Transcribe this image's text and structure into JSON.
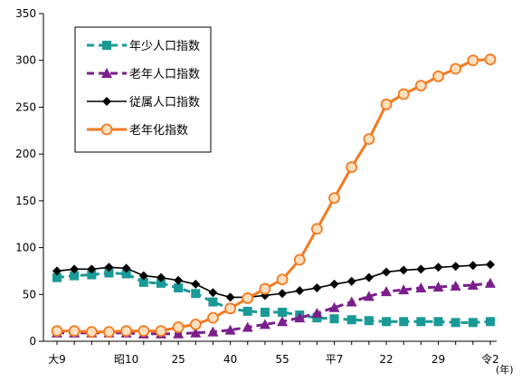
{
  "chart_data": {
    "type": "line",
    "title": "",
    "xlabel": "",
    "ylabel": "",
    "unit_label": "(年)",
    "ylim": [
      0,
      350
    ],
    "yticks": [
      0,
      50,
      100,
      150,
      200,
      250,
      300,
      350
    ],
    "x_tick_labels": [
      {
        "i": 0,
        "label": "大9"
      },
      {
        "i": 4,
        "label": "昭10"
      },
      {
        "i": 7,
        "label": "25"
      },
      {
        "i": 10,
        "label": "40"
      },
      {
        "i": 13,
        "label": "55"
      },
      {
        "i": 16,
        "label": "平7"
      },
      {
        "i": 19,
        "label": "22"
      },
      {
        "i": 22,
        "label": "29"
      },
      {
        "i": 25,
        "label": "令2"
      }
    ],
    "point_count": 26,
    "legend_position": "top-left",
    "grid": false,
    "series": [
      {
        "name": "年少人口指数",
        "color": "#1A9A96",
        "marker": "square",
        "dash": true,
        "values": [
          68,
          70,
          71,
          73,
          72,
          63,
          62,
          57,
          51,
          42,
          35,
          32,
          31,
          31,
          28,
          25,
          24,
          23,
          22,
          21,
          21,
          21,
          21,
          20,
          20,
          21
        ]
      },
      {
        "name": "老年人口指数",
        "color": "#7B1F8C",
        "marker": "triangle",
        "dash": true,
        "values": [
          9,
          9,
          9,
          9,
          9,
          8,
          8,
          8,
          9,
          10,
          12,
          15,
          18,
          21,
          25,
          30,
          36,
          42,
          48,
          53,
          55,
          57,
          58,
          59,
          60,
          62
        ]
      },
      {
        "name": "従属人口指数",
        "color": "#000000",
        "marker": "diamond",
        "dash": false,
        "values": [
          75,
          77,
          77,
          79,
          78,
          70,
          68,
          65,
          61,
          52,
          47,
          47,
          49,
          51,
          54,
          57,
          61,
          64,
          68,
          74,
          76,
          77,
          79,
          80,
          81,
          82
        ]
      },
      {
        "name": "老年化指数",
        "color": "#F47A20",
        "marker": "circle",
        "dash": false,
        "values": [
          11,
          11,
          10,
          10,
          11,
          11,
          11,
          15,
          18,
          25,
          35,
          46,
          56,
          66,
          87,
          120,
          153,
          186,
          216,
          253,
          264,
          273,
          283,
          291,
          300,
          301
        ]
      }
    ]
  }
}
